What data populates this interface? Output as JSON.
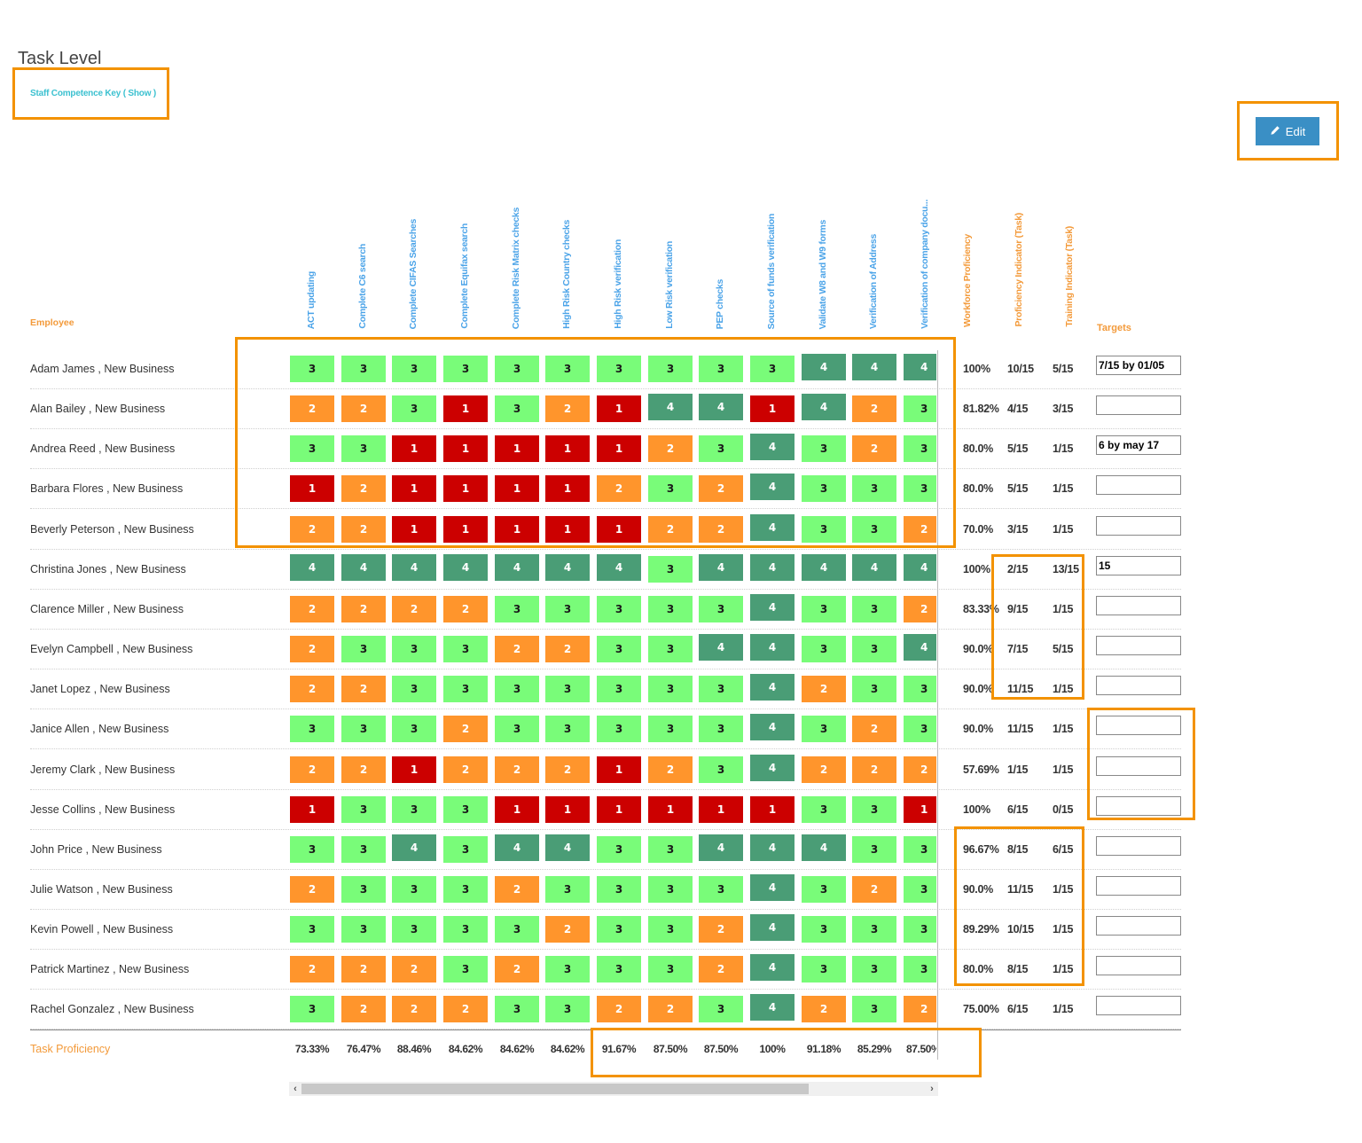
{
  "page": {
    "title": "Task Level",
    "key_link": "Staff Competence Key ( Show )",
    "edit_button": "Edit"
  },
  "headers": {
    "employee": "Employee",
    "tasks": [
      "ACT updating",
      "Complete C6 search",
      "Complete CIFAS Searches",
      "Complete Equifax search",
      "Complete Risk Matrix checks",
      "High Risk Country checks",
      "High Risk verification",
      "Low Risk verification",
      "PEP checks",
      "Source of funds verification",
      "Validate W8 and W9 forms",
      "Verification of Address",
      "Verification of company docu..."
    ],
    "metrics": [
      "Workforce Proficiency",
      "Proficiency Indicator (Task)",
      "Training Indicator (Task)"
    ],
    "targets": "Targets"
  },
  "colors": {
    "level_1": "#cc0000",
    "level_2": "#ff952c",
    "level_3": "#79fc79",
    "level_4": "#4a9d76",
    "task_header": "#4aa3e8",
    "metric_header": "#f39a3a",
    "key_link": "#3cc1d0",
    "edit_button": "#3a8fc5",
    "highlight": "#f39200"
  },
  "rows": [
    {
      "employee": "Adam James , New Business",
      "scores": [
        3,
        3,
        3,
        3,
        3,
        3,
        3,
        3,
        3,
        3,
        4,
        4,
        4
      ],
      "workforce": "100%",
      "proficiency": "10/15",
      "training": "5/15",
      "target": "7/15 by 01/05"
    },
    {
      "employee": "Alan Bailey , New Business",
      "scores": [
        2,
        2,
        3,
        1,
        3,
        2,
        1,
        4,
        4,
        1,
        4,
        2,
        3
      ],
      "workforce": "81.82%",
      "proficiency": "4/15",
      "training": "3/15",
      "target": ""
    },
    {
      "employee": "Andrea Reed , New Business",
      "scores": [
        3,
        3,
        1,
        1,
        1,
        1,
        1,
        2,
        3,
        4,
        3,
        2,
        3
      ],
      "workforce": "80.0%",
      "proficiency": "5/15",
      "training": "1/15",
      "target": "6 by may 17"
    },
    {
      "employee": "Barbara Flores , New Business",
      "scores": [
        1,
        2,
        1,
        1,
        1,
        1,
        2,
        3,
        2,
        4,
        3,
        3,
        3
      ],
      "workforce": "80.0%",
      "proficiency": "5/15",
      "training": "1/15",
      "target": ""
    },
    {
      "employee": "Beverly Peterson , New Business",
      "scores": [
        2,
        2,
        1,
        1,
        1,
        1,
        1,
        2,
        2,
        4,
        3,
        3,
        2
      ],
      "workforce": "70.0%",
      "proficiency": "3/15",
      "training": "1/15",
      "target": ""
    },
    {
      "employee": "Christina Jones , New Business",
      "scores": [
        4,
        4,
        4,
        4,
        4,
        4,
        4,
        3,
        4,
        4,
        4,
        4,
        4
      ],
      "workforce": "100%",
      "proficiency": "2/15",
      "training": "13/15",
      "target": "15"
    },
    {
      "employee": "Clarence Miller , New Business",
      "scores": [
        2,
        2,
        2,
        2,
        3,
        3,
        3,
        3,
        3,
        4,
        3,
        3,
        2
      ],
      "workforce": "83.33%",
      "proficiency": "9/15",
      "training": "1/15",
      "target": ""
    },
    {
      "employee": "Evelyn Campbell , New Business",
      "scores": [
        2,
        3,
        3,
        3,
        2,
        2,
        3,
        3,
        4,
        4,
        3,
        3,
        4
      ],
      "workforce": "90.0%",
      "proficiency": "7/15",
      "training": "5/15",
      "target": ""
    },
    {
      "employee": "Janet Lopez , New Business",
      "scores": [
        2,
        2,
        3,
        3,
        3,
        3,
        3,
        3,
        3,
        4,
        2,
        3,
        3
      ],
      "workforce": "90.0%",
      "proficiency": "11/15",
      "training": "1/15",
      "target": ""
    },
    {
      "employee": "Janice Allen , New Business",
      "scores": [
        3,
        3,
        3,
        2,
        3,
        3,
        3,
        3,
        3,
        4,
        3,
        2,
        3
      ],
      "workforce": "90.0%",
      "proficiency": "11/15",
      "training": "1/15",
      "target": ""
    },
    {
      "employee": "Jeremy Clark , New Business",
      "scores": [
        2,
        2,
        1,
        2,
        2,
        2,
        1,
        2,
        3,
        4,
        2,
        2,
        2
      ],
      "workforce": "57.69%",
      "proficiency": "1/15",
      "training": "1/15",
      "target": ""
    },
    {
      "employee": "Jesse Collins , New Business",
      "scores": [
        1,
        3,
        3,
        3,
        1,
        1,
        1,
        1,
        1,
        1,
        3,
        3,
        1
      ],
      "workforce": "100%",
      "proficiency": "6/15",
      "training": "0/15",
      "target": ""
    },
    {
      "employee": "John Price , New Business",
      "scores": [
        3,
        3,
        4,
        3,
        4,
        4,
        3,
        3,
        4,
        4,
        4,
        3,
        3
      ],
      "workforce": "96.67%",
      "proficiency": "8/15",
      "training": "6/15",
      "target": ""
    },
    {
      "employee": "Julie Watson , New Business",
      "scores": [
        2,
        3,
        3,
        3,
        2,
        3,
        3,
        3,
        3,
        4,
        3,
        2,
        3
      ],
      "workforce": "90.0%",
      "proficiency": "11/15",
      "training": "1/15",
      "target": ""
    },
    {
      "employee": "Kevin Powell , New Business",
      "scores": [
        3,
        3,
        3,
        3,
        3,
        2,
        3,
        3,
        2,
        4,
        3,
        3,
        3
      ],
      "workforce": "89.29%",
      "proficiency": "10/15",
      "training": "1/15",
      "target": ""
    },
    {
      "employee": "Patrick Martinez , New Business",
      "scores": [
        2,
        2,
        2,
        3,
        2,
        3,
        3,
        3,
        2,
        4,
        3,
        3,
        3
      ],
      "workforce": "80.0%",
      "proficiency": "8/15",
      "training": "1/15",
      "target": ""
    },
    {
      "employee": "Rachel Gonzalez , New Business",
      "scores": [
        3,
        2,
        2,
        2,
        3,
        3,
        2,
        2,
        3,
        4,
        2,
        3,
        2
      ],
      "workforce": "75.00%",
      "proficiency": "6/15",
      "training": "1/15",
      "target": ""
    }
  ],
  "summary": {
    "label": "Task Proficiency",
    "values": [
      "73.33%",
      "76.47%",
      "88.46%",
      "84.62%",
      "84.62%",
      "84.62%",
      "91.67%",
      "87.50%",
      "87.50%",
      "100%",
      "91.18%",
      "85.29%",
      "87.50%"
    ]
  },
  "scrollbar": {
    "left_arrow": "‹",
    "right_arrow": "›"
  }
}
